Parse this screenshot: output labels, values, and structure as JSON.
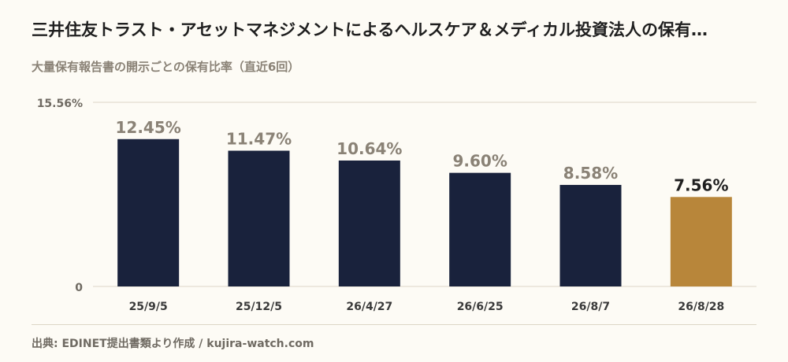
{
  "header": {
    "title": "三井住友トラスト・アセットマネジメントによるヘルスケア＆メディカル投資法人の保有…",
    "subtitle": "大量保有報告書の開示ごとの保有比率（直近6回）"
  },
  "footer": {
    "source": "出典: EDINET提出書類より作成 / kujira-watch.com"
  },
  "colors": {
    "bar": "#19223c",
    "highlight": "#b8863a",
    "value_label": "#8a8276",
    "highlight_label": "#1f1f1f",
    "grid": "#ddd6c6"
  },
  "chart_data": {
    "type": "bar",
    "categories": [
      "25/9/5",
      "25/12/5",
      "26/4/27",
      "26/6/25",
      "26/8/7",
      "26/8/28"
    ],
    "values": [
      12.45,
      11.47,
      10.64,
      9.6,
      8.58,
      7.56
    ],
    "value_labels": [
      "12.45%",
      "11.47%",
      "10.64%",
      "9.60%",
      "8.58%",
      "7.56%"
    ],
    "highlight_index": 5,
    "ylim": [
      0,
      15.56
    ],
    "ytick_labels": [
      "0",
      "15.56%"
    ],
    "grid": true
  }
}
